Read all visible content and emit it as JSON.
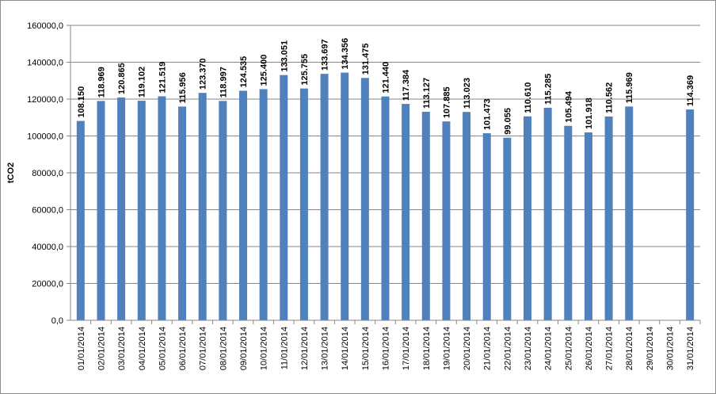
{
  "chart_data": {
    "type": "bar",
    "ylabel": "tCO2",
    "xlabel": "",
    "title": "",
    "ylim": [
      0,
      160000
    ],
    "ytick_values": [
      0,
      20000,
      40000,
      60000,
      80000,
      100000,
      120000,
      140000,
      160000
    ],
    "ytick_labels": [
      "0,0",
      "20000,0",
      "40000,0",
      "60000,0",
      "80000,0",
      "100000,0",
      "120000,0",
      "140000,0",
      "160000,0"
    ],
    "grid": true,
    "legend": "none",
    "bar_color": "#4f81bd",
    "categories": [
      "01/01/2014",
      "02/01/2014",
      "03/01/2014",
      "04/01/2014",
      "05/01/2014",
      "06/01/2014",
      "07/01/2014",
      "08/01/2014",
      "09/01/2014",
      "10/01/2014",
      "11/01/2014",
      "12/01/2014",
      "13/01/2014",
      "14/01/2014",
      "15/01/2014",
      "16/01/2014",
      "17/01/2014",
      "18/01/2014",
      "19/01/2014",
      "20/01/2014",
      "21/01/2014",
      "22/01/2014",
      "23/01/2014",
      "24/01/2014",
      "25/01/2014",
      "26/01/2014",
      "27/01/2014",
      "28/01/2014",
      "29/01/2014",
      "30/01/2014",
      "31/01/2014"
    ],
    "values": [
      108150,
      118969,
      120865,
      119102,
      121519,
      115956,
      123370,
      118997,
      124535,
      125400,
      133051,
      125755,
      133697,
      134356,
      131475,
      121440,
      117384,
      113127,
      107885,
      113023,
      101473,
      99055,
      110610,
      115285,
      105494,
      101918,
      110562,
      115969,
      null,
      null,
      114369
    ],
    "data_labels": [
      "108.150",
      "118.969",
      "120.865",
      "119.102",
      "121.519",
      "115.956",
      "123.370",
      "118.997",
      "124.535",
      "125.400",
      "133.051",
      "125.755",
      "133.697",
      "134.356",
      "131.475",
      "121.440",
      "117.384",
      "113.127",
      "107.885",
      "113.023",
      "101.473",
      "99.055",
      "110.610",
      "115.285",
      "105.494",
      "101.918",
      "110.562",
      "115.969",
      "",
      "",
      "114.369"
    ]
  }
}
